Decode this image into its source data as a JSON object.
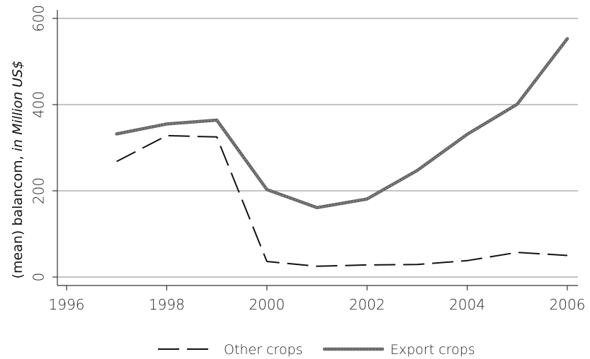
{
  "chart_data": {
    "type": "line",
    "ylabel_main": "(mean) balancom, ",
    "ylabel_emph": "in Million US$",
    "xlabel": "",
    "xlim": [
      1996,
      2006
    ],
    "ylim": [
      0,
      600
    ],
    "x_ticks": [
      1996,
      1998,
      2000,
      2002,
      2004,
      2006
    ],
    "y_ticks": [
      0,
      200,
      400,
      600
    ],
    "grid": true,
    "legend_position": "bottom",
    "x": [
      1997,
      1998,
      1999,
      2000,
      2001,
      2002,
      2003,
      2004,
      2005,
      2006
    ],
    "series": [
      {
        "name": "Other crops",
        "style": "dashed",
        "color": "#111111",
        "values": [
          268,
          328,
          325,
          36,
          25,
          28,
          29,
          38,
          57,
          50
        ]
      },
      {
        "name": "Export crops",
        "style": "dotted",
        "color": "#666666",
        "values": [
          332,
          355,
          364,
          203,
          161,
          181,
          247,
          331,
          401,
          553
        ]
      }
    ]
  }
}
